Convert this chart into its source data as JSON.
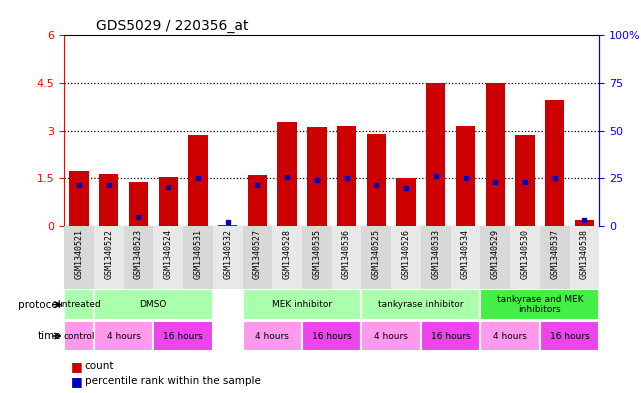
{
  "title": "GDS5029 / 220356_at",
  "samples": [
    "GSM1340521",
    "GSM1340522",
    "GSM1340523",
    "GSM1340524",
    "GSM1340531",
    "GSM1340532",
    "GSM1340527",
    "GSM1340528",
    "GSM1340535",
    "GSM1340536",
    "GSM1340525",
    "GSM1340526",
    "GSM1340533",
    "GSM1340534",
    "GSM1340529",
    "GSM1340530",
    "GSM1340537",
    "GSM1340538"
  ],
  "red_values": [
    1.72,
    1.65,
    1.38,
    1.55,
    2.85,
    0.04,
    1.62,
    3.28,
    3.1,
    3.15,
    2.9,
    1.5,
    4.5,
    3.15,
    4.5,
    2.85,
    3.95,
    0.2
  ],
  "blue_values": [
    1.3,
    1.28,
    0.28,
    1.22,
    1.52,
    0.13,
    1.3,
    1.55,
    1.45,
    1.5,
    1.3,
    1.2,
    1.58,
    1.52,
    1.38,
    1.38,
    1.5,
    0.18
  ],
  "ylim_left": [
    0,
    6
  ],
  "ylim_right": [
    0,
    100
  ],
  "yticks_left": [
    0,
    1.5,
    3.0,
    4.5,
    6
  ],
  "yticks_right": [
    0,
    25,
    50,
    75,
    100
  ],
  "bar_color": "#cc0000",
  "marker_color": "#0000bb",
  "chart_bg": "#ffffff",
  "label_bg": "#d8d8d8",
  "proto_light_green": "#aaffaa",
  "proto_dark_green": "#44ee44",
  "time_light_pink": "#ff99ee",
  "time_dark_pink": "#ee44ee",
  "proto_data": [
    [
      0,
      1,
      "#aaffaa",
      "untreated"
    ],
    [
      1,
      5,
      "#aaffaa",
      "DMSO"
    ],
    [
      6,
      10,
      "#aaffaa",
      "MEK inhibitor"
    ],
    [
      10,
      14,
      "#aaffaa",
      "tankyrase inhibitor"
    ],
    [
      14,
      18,
      "#44ee44",
      "tankyrase and MEK\ninhibitors"
    ]
  ],
  "time_data": [
    [
      0,
      1,
      "#ff99ee",
      "control"
    ],
    [
      1,
      3,
      "#ff99ee",
      "4 hours"
    ],
    [
      3,
      5,
      "#ee44ee",
      "16 hours"
    ],
    [
      6,
      8,
      "#ff99ee",
      "4 hours"
    ],
    [
      8,
      10,
      "#ee44ee",
      "16 hours"
    ],
    [
      10,
      12,
      "#ff99ee",
      "4 hours"
    ],
    [
      12,
      14,
      "#ee44ee",
      "16 hours"
    ],
    [
      14,
      16,
      "#ff99ee",
      "4 hours"
    ],
    [
      16,
      18,
      "#ee44ee",
      "16 hours"
    ]
  ]
}
